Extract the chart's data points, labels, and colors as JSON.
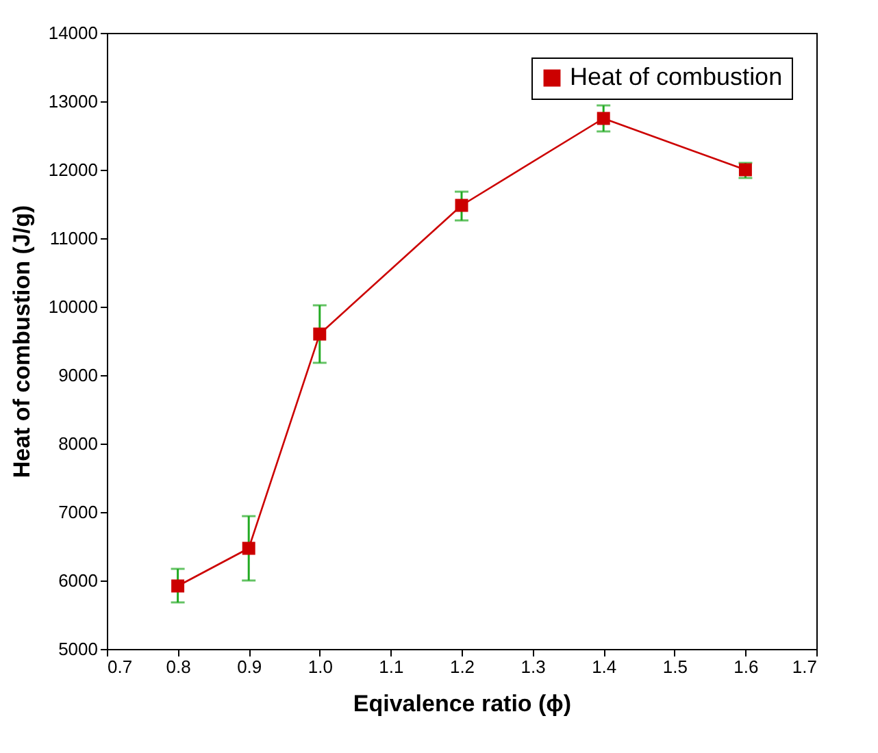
{
  "chart_data": {
    "type": "line",
    "xlabel": "Eqivalence ratio (ϕ)",
    "ylabel": "Heat of combustion (J/g)",
    "x": [
      0.8,
      0.9,
      1.0,
      1.2,
      1.4,
      1.6
    ],
    "series": [
      {
        "name": "Heat of combustion",
        "color": "#cc0000",
        "values": [
          5920,
          6470,
          9600,
          11480,
          12750,
          12000
        ],
        "errors": [
          [
            5680,
            6170
          ],
          [
            6000,
            6940
          ],
          [
            9180,
            10020
          ],
          [
            11260,
            11680
          ],
          [
            12560,
            12940
          ],
          [
            11880,
            12100
          ]
        ]
      }
    ],
    "xlim": [
      0.7,
      1.7
    ],
    "xticks": [
      0.7,
      0.8,
      0.9,
      {
        "value": 1,
        "label": "1.0"
      },
      1.1,
      1.2,
      1.3,
      1.4,
      1.5,
      1.6,
      1.7
    ],
    "ylim": [
      5000,
      14000
    ],
    "yticks": [
      5000,
      6000,
      7000,
      8000,
      9000,
      10000,
      11000,
      12000,
      13000,
      14000
    ],
    "grid": false,
    "legend": "top right",
    "marker": "square",
    "line_style": "solid"
  }
}
